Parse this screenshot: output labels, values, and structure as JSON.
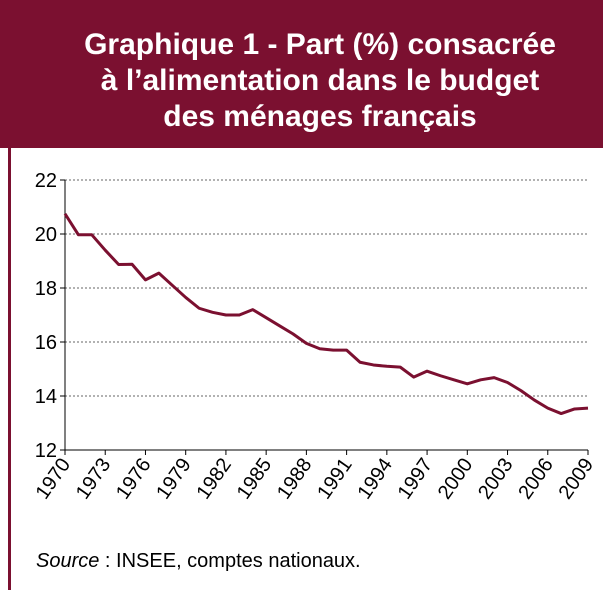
{
  "chart_data": {
    "type": "line",
    "title": [
      "Graphique 1 - Part (%) consacrée",
      "à l’alimentation dans le budget",
      "des ménages français"
    ],
    "x": [
      1970,
      1971,
      1972,
      1973,
      1974,
      1975,
      1976,
      1977,
      1978,
      1979,
      1980,
      1981,
      1982,
      1983,
      1984,
      1985,
      1986,
      1987,
      1988,
      1989,
      1990,
      1991,
      1992,
      1993,
      1994,
      1995,
      1996,
      1997,
      1998,
      1999,
      2000,
      2001,
      2002,
      2003,
      2004,
      2005,
      2006,
      2007,
      2008,
      2009
    ],
    "series": [
      {
        "color": "#7b1030",
        "values": [
          20.75,
          19.97,
          19.97,
          19.4,
          18.87,
          18.88,
          18.3,
          18.55,
          18.1,
          17.65,
          17.25,
          17.1,
          17.0,
          17.0,
          17.2,
          16.9,
          16.6,
          16.3,
          15.95,
          15.75,
          15.7,
          15.7,
          15.25,
          15.15,
          15.1,
          15.07,
          14.7,
          14.92,
          14.75,
          14.6,
          14.45,
          14.6,
          14.68,
          14.5,
          14.2,
          13.85,
          13.55,
          13.35,
          13.52,
          13.55
        ]
      }
    ],
    "xlim": [
      1970,
      2009
    ],
    "xticks": [
      1970,
      1973,
      1976,
      1979,
      1982,
      1985,
      1988,
      1991,
      1994,
      1997,
      2000,
      2003,
      2006,
      2009
    ],
    "ylim": [
      12,
      22
    ],
    "yticks": [
      12,
      14,
      16,
      18,
      20,
      22
    ],
    "grid": true,
    "source_label": "Source",
    "source_text": " : INSEE, comptes nationaux."
  }
}
